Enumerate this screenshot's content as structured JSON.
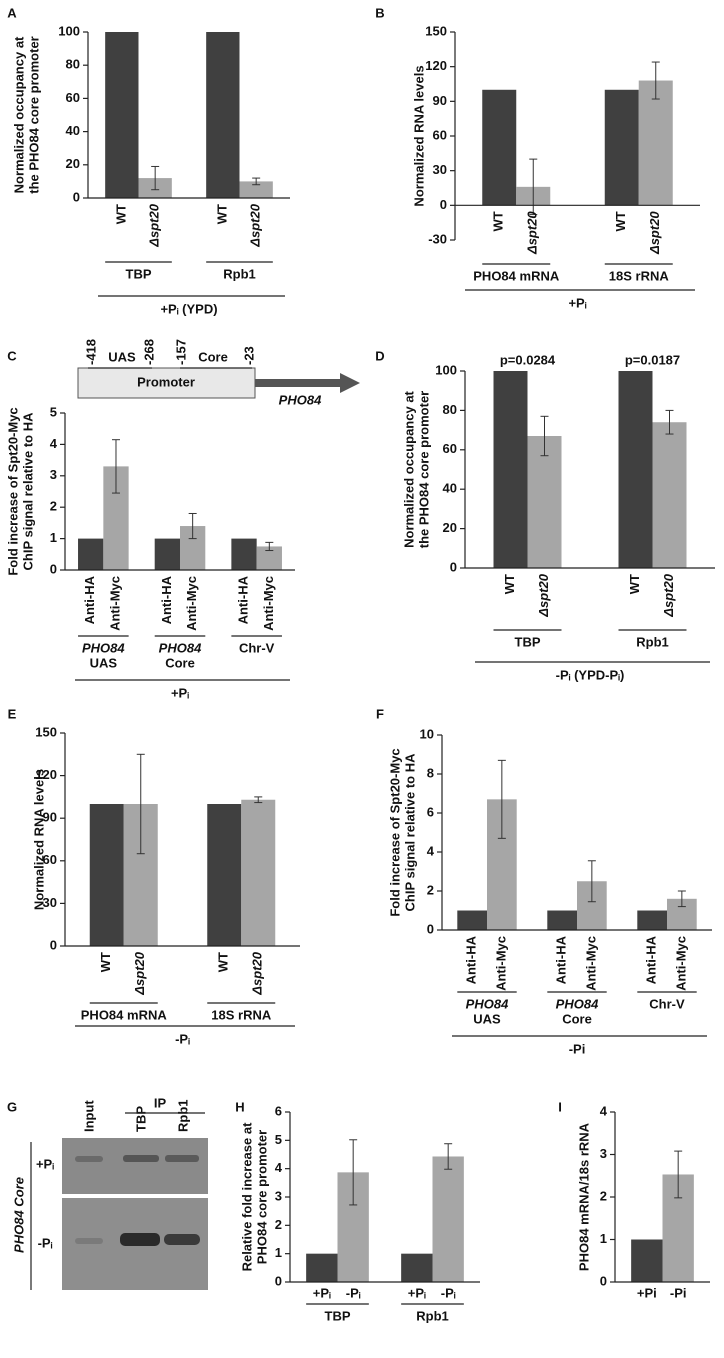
{
  "chart_data": [
    {
      "type": "bar",
      "panel": "A",
      "ylabel": [
        "Normalized occupancy at",
        "the PHO84 core promoter"
      ],
      "categories": [
        "WT",
        "Δspt20",
        "WT",
        "Δspt20"
      ],
      "values": [
        100,
        12,
        100,
        10
      ],
      "errors": [
        null,
        7,
        null,
        2
      ],
      "colors": [
        "#404040",
        "#a6a6a6"
      ],
      "groups": [
        "TBP",
        "Rpb1"
      ],
      "footer": "+Pᵢ (YPD)",
      "ylim": [
        0,
        100
      ],
      "yticks": [
        0,
        20,
        40,
        60,
        80,
        100
      ]
    },
    {
      "type": "bar",
      "panel": "B",
      "ylabel": [
        "Normalized RNA levels"
      ],
      "categories": [
        "WT",
        "Δspt20",
        "WT",
        "Δspt20"
      ],
      "values": [
        100,
        16,
        100,
        108
      ],
      "errors": [
        null,
        24,
        null,
        16
      ],
      "colors": [
        "#404040",
        "#a6a6a6"
      ],
      "groups": [
        "PHO84 mRNA",
        "18S rRNA"
      ],
      "footer": "+Pᵢ",
      "ylim": [
        -30,
        150
      ],
      "yticks": [
        -30,
        0,
        30,
        60,
        90,
        120,
        150
      ]
    },
    {
      "type": "bar",
      "panel": "C",
      "ylabel": [
        "Fold increase of Spt20-Myc",
        "ChIP signal relative to HA"
      ],
      "categories": [
        "Anti-HA",
        "Anti-Myc",
        "Anti-HA",
        "Anti-Myc",
        "Anti-HA",
        "Anti-Myc"
      ],
      "values": [
        1,
        3.3,
        1,
        1.4,
        1,
        0.75
      ],
      "errors": [
        null,
        0.85,
        null,
        0.4,
        null,
        0.13
      ],
      "colors": [
        "#404040",
        "#a6a6a6"
      ],
      "groups": [
        [
          "PHO84",
          "UAS"
        ],
        [
          "PHO84",
          "Core"
        ],
        [
          "Chr-V"
        ]
      ],
      "footer": "+Pᵢ",
      "ylim": [
        0,
        5
      ],
      "yticks": [
        0,
        1,
        2,
        3,
        4,
        5
      ],
      "diagram": {
        "box": "Promoter",
        "gene": "PHO84",
        "labels": [
          "-418",
          "UAS",
          "-268",
          "-157",
          "Core",
          "-23"
        ]
      }
    },
    {
      "type": "bar",
      "panel": "D",
      "ylabel": [
        "Normalized occupancy at",
        "the PHO84 core promoter"
      ],
      "categories": [
        "WT",
        "Δspt20",
        "WT",
        "Δspt20"
      ],
      "values": [
        100,
        67,
        100,
        74
      ],
      "errors": [
        null,
        10,
        null,
        6
      ],
      "colors": [
        "#404040",
        "#a6a6a6"
      ],
      "annotations": [
        "p=0.0284",
        "p=0.0187"
      ],
      "groups": [
        "TBP",
        "Rpb1"
      ],
      "footer": "-Pᵢ (YPD-Pᵢ)",
      "ylim": [
        0,
        100
      ],
      "yticks": [
        0,
        20,
        40,
        60,
        80,
        100
      ]
    },
    {
      "type": "bar",
      "panel": "E",
      "ylabel": [
        "Normalized RNA levels"
      ],
      "categories": [
        "WT",
        "Δspt20",
        "WT",
        "Δspt20"
      ],
      "values": [
        100,
        100,
        100,
        103
      ],
      "errors": [
        null,
        35,
        null,
        2
      ],
      "colors": [
        "#404040",
        "#a6a6a6"
      ],
      "groups": [
        "PHO84 mRNA",
        "18S rRNA"
      ],
      "footer": "-Pᵢ",
      "ylim": [
        0,
        150
      ],
      "yticks": [
        0,
        30,
        60,
        90,
        120,
        150
      ]
    },
    {
      "type": "bar",
      "panel": "F",
      "ylabel": [
        "Fold increase of Spt20-Myc",
        "ChIP signal relative to HA"
      ],
      "categories": [
        "Anti-HA",
        "Anti-Myc",
        "Anti-HA",
        "Anti-Myc",
        "Anti-HA",
        "Anti-Myc"
      ],
      "values": [
        1,
        6.7,
        1,
        2.5,
        1,
        1.6
      ],
      "errors": [
        null,
        2,
        null,
        1.05,
        null,
        0.4
      ],
      "colors": [
        "#404040",
        "#a6a6a6"
      ],
      "groups": [
        [
          "PHO84",
          "UAS"
        ],
        [
          "PHO84",
          "Core"
        ],
        [
          "Chr-V"
        ]
      ],
      "footer": "-Pi",
      "ylim": [
        0,
        10
      ],
      "yticks": [
        0,
        2,
        4,
        6,
        8,
        10
      ]
    },
    {
      "type": "gel",
      "panel": "G",
      "lanes": [
        "Input",
        "TBP",
        "Rpb1"
      ],
      "ip": "IP",
      "side": "PHO84 Core",
      "rows": [
        "+Pᵢ",
        "-Pᵢ"
      ]
    },
    {
      "type": "bar",
      "panel": "H",
      "ylabel": [
        "Relative fold increase at",
        "PHO84 core promoter"
      ],
      "categories": [
        "+Pᵢ",
        "-Pᵢ",
        "+Pᵢ",
        "-Pᵢ"
      ],
      "values": [
        1,
        3.87,
        1,
        4.43
      ],
      "errors": [
        null,
        1.15,
        null,
        0.45
      ],
      "colors": [
        "#404040",
        "#a6a6a6"
      ],
      "groups": [
        "TBP",
        "Rpb1"
      ],
      "ylim": [
        0,
        6
      ],
      "yticks": [
        0,
        1,
        2,
        3,
        4,
        5,
        6
      ]
    },
    {
      "type": "bar",
      "panel": "I",
      "ylabel": [
        "PHO84 mRNA/18s rRNA"
      ],
      "categories": [
        "+Pi",
        "-Pi"
      ],
      "values": [
        1,
        2.53
      ],
      "errors": [
        null,
        0.55
      ],
      "colors": [
        "#404040",
        "#a6a6a6"
      ],
      "ylim": [
        0,
        4
      ],
      "yticks": [
        0,
        1,
        2,
        3,
        4
      ]
    }
  ]
}
